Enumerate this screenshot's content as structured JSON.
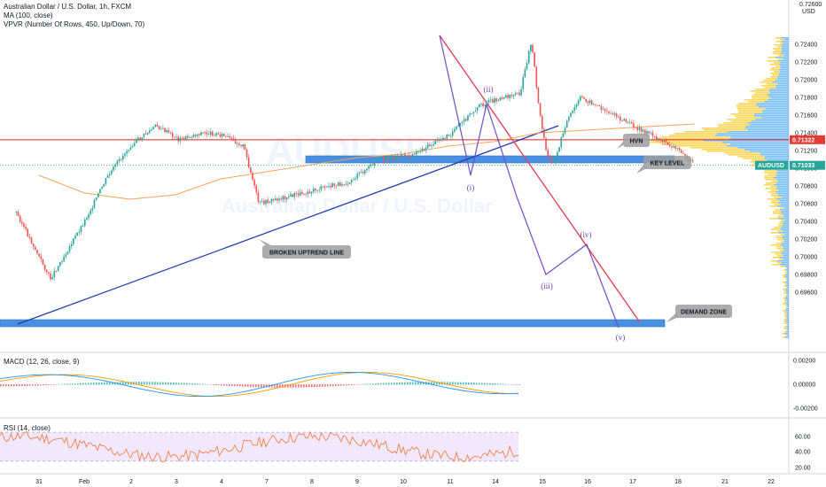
{
  "header": {
    "symbol_line": "Australian Dollar / U.S. Dollar, 1h, FXCM",
    "ma_line": "MA (100, close)",
    "vpvr_line": "VPVR (Number Of Rows, 450, Up/Down, 70)",
    "macd_line": "MACD (12, 26, close, 9)",
    "rsi_line": "RSI (14, close)"
  },
  "watermark": {
    "ticker": "AUDUSD",
    "name": "Australian Dollar / U.S. Dollar"
  },
  "axis": {
    "currency": "USD",
    "top_tick": "0.72600",
    "price_ticks": [
      "0.72400",
      "0.72200",
      "0.72000",
      "0.71800",
      "0.71600",
      "0.71400",
      "0.71200",
      "0.71000",
      "0.70800",
      "0.70600",
      "0.70400",
      "0.70200",
      "0.70000",
      "0.69800",
      "0.69600"
    ],
    "macd_ticks": [
      "0.00200",
      "0.00000",
      "-0.00200"
    ],
    "rsi_ticks": [
      "60.00",
      "40.00",
      "20.00"
    ],
    "date_labels": [
      "31",
      "Feb",
      "2",
      "3",
      "4",
      "5",
      "6",
      "7",
      "8",
      "9",
      "10",
      "11",
      "14",
      "15",
      "16",
      "17",
      "18",
      "21",
      "22"
    ],
    "price_badges": {
      "hvn_price": "0.71322",
      "last_label": "AUDUSD",
      "last_price": "0.71033"
    }
  },
  "annotations": {
    "hvn": "HVN",
    "key_level": "KEY LEVEL",
    "broken_uptrend": "BROKEN UPTREND LINE",
    "demand_zone": "DEMAND ZONE",
    "waves": [
      "(i)",
      "(ii)",
      "(iii)",
      "(iv)",
      "(v)"
    ]
  },
  "colors": {
    "up": "#26a69a",
    "down": "#ef5350",
    "ma": "#f7a35c",
    "resistance": "#e53935",
    "zone": "#4a90e2",
    "trendline": "#1a3bb0",
    "bearish_line": "#e0455a",
    "projection": "#6a4fc8",
    "macd": "#2196f3",
    "signal": "#ff9800",
    "rsi": "#f4814a",
    "rsi_band": "#e8d9fb",
    "volume_profile": [
      "#2196f3",
      "#ffca28"
    ]
  },
  "chart_data": [
    {
      "type": "line",
      "title": "Australian Dollar / U.S. Dollar, 1h, FXCM",
      "x_domain": [
        "Jan 31",
        "Feb 22"
      ],
      "ylim": [
        0.6955,
        0.7265
      ],
      "series": [
        {
          "name": "price (close, approx.)",
          "x": [
            "Jan 30 12:00",
            "Jan 31 06:00",
            "Feb 1 00:00",
            "Feb 1 12:00",
            "Feb 2 00:00",
            "Feb 2 14:00",
            "Feb 3 02:00",
            "Feb 3 14:00",
            "Feb 4 00:00",
            "Feb 4 12:00",
            "Feb 4 20:00",
            "Feb 6 20:00",
            "Feb 7 12:00",
            "Feb 8 04:00",
            "Feb 8 14:00",
            "Feb 9 02:00",
            "Feb 9 16:00",
            "Feb 10 04:00",
            "Feb 10 14:00",
            "Feb 10 20:00",
            "Feb 11 00:00",
            "Feb 11 04:00",
            "Feb 11 08:00",
            "Feb 11 14:00",
            "Feb 11 22:00",
            "Feb 14 04:00",
            "Feb 14 10:00"
          ],
          "values": [
            0.705,
            0.6975,
            0.704,
            0.709,
            0.7125,
            0.7148,
            0.7132,
            0.714,
            0.7138,
            0.7125,
            0.706,
            0.7085,
            0.711,
            0.7115,
            0.7125,
            0.714,
            0.717,
            0.718,
            0.7185,
            0.7245,
            0.7165,
            0.7115,
            0.7105,
            0.715,
            0.718,
            0.7118,
            0.7103
          ]
        },
        {
          "name": "MA (100, close)",
          "x": [
            "Jan 31 00:00",
            "Feb 1 00:00",
            "Feb 2 00:00",
            "Feb 3 00:00",
            "Feb 4 00:00",
            "Feb 7 00:00",
            "Feb 8 00:00",
            "Feb 9 00:00",
            "Feb 10 00:00",
            "Feb 11 00:00",
            "Feb 14 10:00"
          ],
          "values": [
            0.7092,
            0.7072,
            0.7065,
            0.707,
            0.7088,
            0.7112,
            0.7116,
            0.7125,
            0.713,
            0.714,
            0.715
          ]
        }
      ],
      "horizontal_levels": [
        {
          "label": "HVN",
          "value": 0.71322
        }
      ],
      "zones": [
        {
          "label": "KEY LEVEL",
          "from": 0.7108,
          "to": 0.7114
        },
        {
          "label": "DEMAND ZONE",
          "from": 0.6966,
          "to": 0.6972
        }
      ],
      "wave_projection": [
        {
          "label": "(i)",
          "x": "Feb 11 08:00",
          "y": 0.7108
        },
        {
          "label": "(ii)",
          "x": "Feb 11 18:00",
          "y": 0.7183
        },
        {
          "label": "(iii)",
          "x": "Feb 15 04:00",
          "y": 0.7018
        },
        {
          "label": "(iv)",
          "x": "Feb 16 00:00",
          "y": 0.7047
        },
        {
          "label": "(v)",
          "x": "Feb 16 20:00",
          "y": 0.6963
        }
      ],
      "last_price": 0.71033
    },
    {
      "type": "line",
      "title": "MACD (12, 26, close, 9)",
      "ylim": [
        -0.0028,
        0.0028
      ],
      "series": [
        {
          "name": "MACD"
        },
        {
          "name": "Signal"
        },
        {
          "name": "Histogram"
        }
      ]
    },
    {
      "type": "line",
      "title": "RSI (14, close)",
      "ylim": [
        15,
        80
      ],
      "bands": [
        30,
        70
      ],
      "series": [
        {
          "name": "RSI"
        }
      ]
    }
  ]
}
